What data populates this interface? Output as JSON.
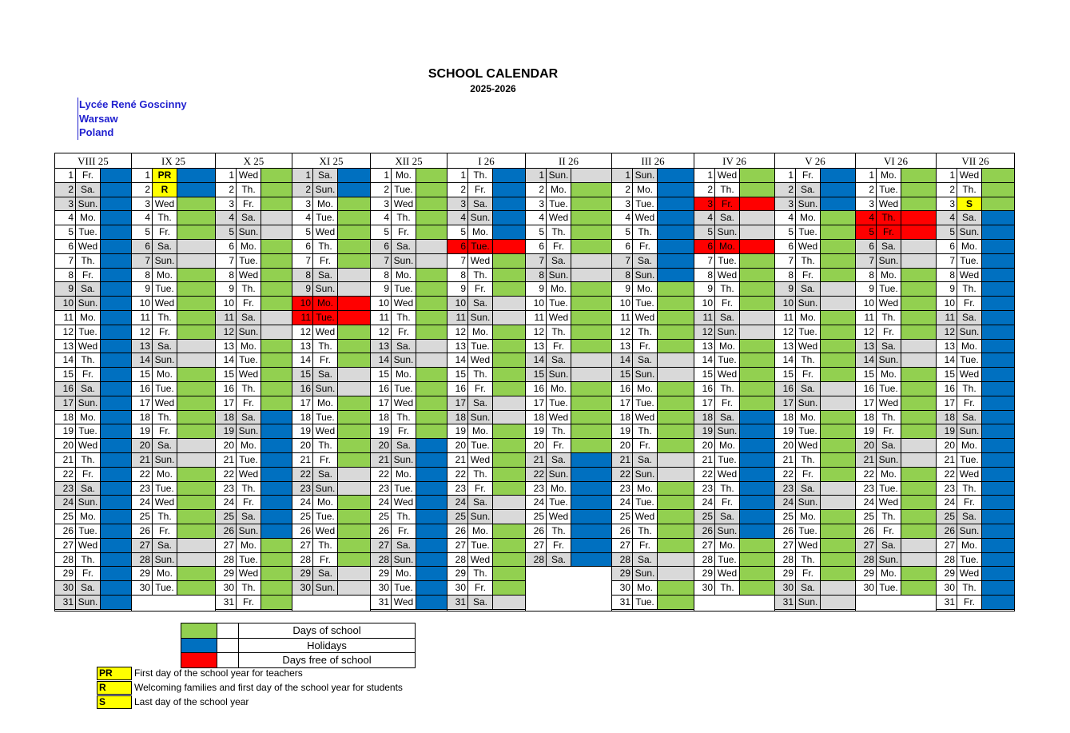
{
  "title": "SCHOOL CALENDAR",
  "subtitle": "2025-2026",
  "school": {
    "name": "Lycée René Goscinny",
    "city": "Warsaw",
    "country": "Poland"
  },
  "colors": {
    "school": "#92d050",
    "holiday": "#0070c0",
    "free": "#ff0000",
    "weekend": "#d9d9d9",
    "marker": "#ffff00"
  },
  "months": [
    {
      "label": "VIII 25",
      "start": 5,
      "days": 31,
      "holiday": "1-31"
    },
    {
      "label": "IX 25",
      "start": 1,
      "days": 30,
      "school": "3-30",
      "weekendBlue": "",
      "marks": {
        "1": "PR",
        "2": "R"
      }
    },
    {
      "label": "X 25",
      "start": 3,
      "days": 31,
      "school": "1-17,27-31",
      "holiday": "18-26"
    },
    {
      "label": "XI 25",
      "start": 6,
      "days": 30,
      "holiday": "1-2",
      "school": "3-30",
      "free": "10,11"
    },
    {
      "label": "XII 25",
      "start": 1,
      "days": 31,
      "school": "1-19",
      "holiday": "20-31"
    },
    {
      "label": "I 26",
      "start": 4,
      "days": 31,
      "holiday": "1-5",
      "school": "6-31",
      "free": "6"
    },
    {
      "label": "II 26",
      "start": 0,
      "days": 28,
      "school": "1-20",
      "holiday": "21-28"
    },
    {
      "label": "III 26",
      "start": 0,
      "days": 31,
      "holiday": "1-8",
      "school": "9-31"
    },
    {
      "label": "IV 26",
      "start": 3,
      "days": 30,
      "school": "1-17,27-30",
      "holiday": "18-26",
      "free": "3,6"
    },
    {
      "label": "V 26",
      "start": 5,
      "days": 31,
      "holiday": "1-3",
      "school": "4-31"
    },
    {
      "label": "VI 26",
      "start": 1,
      "days": 30,
      "school": "1-30",
      "free": "4,5"
    },
    {
      "label": "VII 26",
      "start": 3,
      "days": 31,
      "school": "1-3",
      "holiday": "4-31",
      "marks": {
        "3": "S"
      }
    }
  ],
  "dayNames": [
    "Sun.",
    "Mo.",
    "Tue.",
    "Wed",
    "Th.",
    "Fr.",
    "Sa."
  ],
  "legend": [
    {
      "key": "school",
      "label": "Days of school"
    },
    {
      "key": "holiday",
      "label": "Holidays"
    },
    {
      "key": "free",
      "label": "Days free of school"
    }
  ],
  "codes": [
    {
      "code": "PR",
      "text": "First day of the school year for teachers"
    },
    {
      "code": "R",
      "text": "Welcoming families and first day of the school year for students"
    },
    {
      "code": "S",
      "text": "Last day of the school year"
    }
  ]
}
